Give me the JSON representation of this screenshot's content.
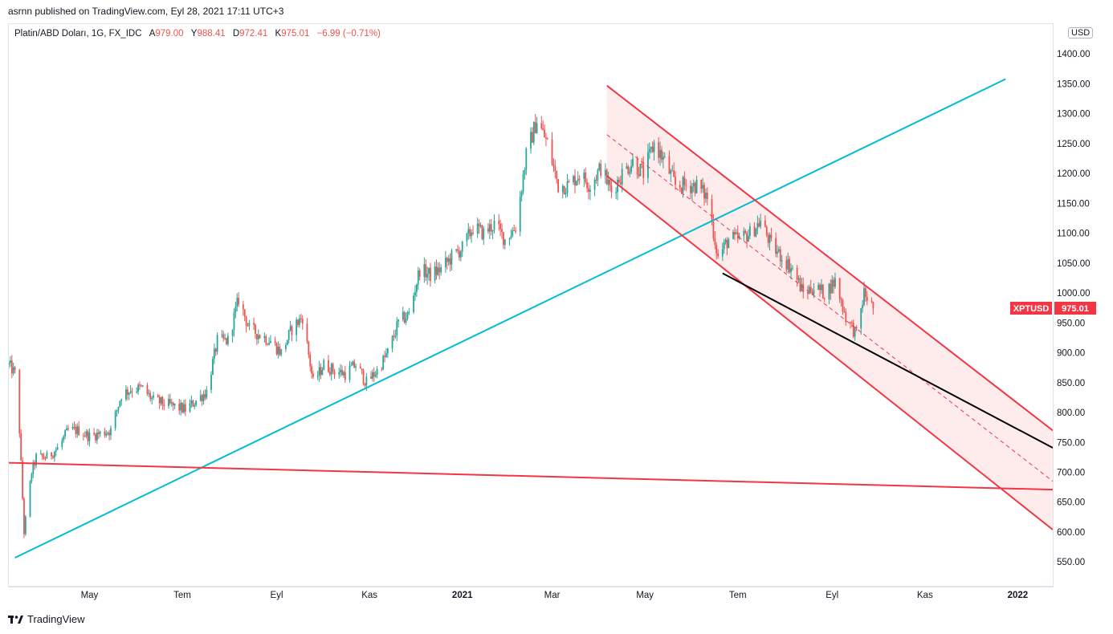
{
  "header": {
    "published": "asrnn published on TradingView.com, Eyl 28, 2021 17:11 UTC+3"
  },
  "legend": {
    "symbol": "Platin/ABD Doları, 1G, FX_IDC",
    "open_label": "A",
    "open": "979.00",
    "high_label": "Y",
    "high": "988.41",
    "low_label": "D",
    "low": "972.41",
    "close_label": "K",
    "close": "975.01",
    "change": "−6.99 (−0.71%)"
  },
  "currency": "USD",
  "last_price_tag": {
    "symbol": "XPTUSD",
    "price": "975.01"
  },
  "footer": {
    "brand": "TradingView"
  },
  "colors": {
    "up": "#26a69a",
    "down": "#ef5350",
    "channel": "#f23645",
    "trendline": "#00bcd4",
    "support": "#000000",
    "channel_fill": "#fde4e4"
  },
  "chart_data": {
    "type": "candlestick",
    "symbol": "XPTUSD",
    "x_start": "2020-03-09",
    "x_end": "2022-01-24",
    "ylim": [
      510,
      1450
    ],
    "y_ticks": [
      550,
      600,
      650,
      700,
      750,
      800,
      850,
      900,
      950,
      1000,
      1050,
      1100,
      1150,
      1200,
      1250,
      1300,
      1350,
      1400
    ],
    "x_ticks": [
      {
        "label": "May",
        "date": "2020-05-01",
        "bold": false
      },
      {
        "label": "Tem",
        "date": "2020-07-01",
        "bold": false
      },
      {
        "label": "Eyl",
        "date": "2020-09-01",
        "bold": false
      },
      {
        "label": "Kas",
        "date": "2020-11-01",
        "bold": false
      },
      {
        "label": "2021",
        "date": "2021-01-01",
        "bold": true
      },
      {
        "label": "Mar",
        "date": "2021-03-01",
        "bold": false
      },
      {
        "label": "May",
        "date": "2021-05-01",
        "bold": false
      },
      {
        "label": "Tem",
        "date": "2021-07-01",
        "bold": false
      },
      {
        "label": "Eyl",
        "date": "2021-09-01",
        "bold": false
      },
      {
        "label": "Kas",
        "date": "2021-11-01",
        "bold": false
      },
      {
        "label": "2022",
        "date": "2022-01-01",
        "bold": true
      }
    ],
    "price_path": [
      [
        "2020-03-09",
        880
      ],
      [
        "2020-03-13",
        865
      ],
      [
        "2020-03-16",
        770
      ],
      [
        "2020-03-19",
        600
      ],
      [
        "2020-03-24",
        700
      ],
      [
        "2020-03-27",
        725
      ],
      [
        "2020-04-03",
        725
      ],
      [
        "2020-04-10",
        740
      ],
      [
        "2020-04-17",
        770
      ],
      [
        "2020-04-24",
        770
      ],
      [
        "2020-05-01",
        760
      ],
      [
        "2020-05-08",
        765
      ],
      [
        "2020-05-15",
        770
      ],
      [
        "2020-05-22",
        830
      ],
      [
        "2020-05-29",
        840
      ],
      [
        "2020-06-05",
        840
      ],
      [
        "2020-06-12",
        820
      ],
      [
        "2020-06-19",
        815
      ],
      [
        "2020-06-26",
        810
      ],
      [
        "2020-07-03",
        805
      ],
      [
        "2020-07-10",
        820
      ],
      [
        "2020-07-17",
        835
      ],
      [
        "2020-07-24",
        920
      ],
      [
        "2020-07-31",
        920
      ],
      [
        "2020-08-07",
        990
      ],
      [
        "2020-08-14",
        940
      ],
      [
        "2020-08-21",
        930
      ],
      [
        "2020-08-28",
        920
      ],
      [
        "2020-09-04",
        900
      ],
      [
        "2020-09-11",
        940
      ],
      [
        "2020-09-18",
        960
      ],
      [
        "2020-09-25",
        850
      ],
      [
        "2020-10-02",
        880
      ],
      [
        "2020-10-09",
        870
      ],
      [
        "2020-10-16",
        865
      ],
      [
        "2020-10-23",
        880
      ],
      [
        "2020-10-30",
        850
      ],
      [
        "2020-11-06",
        870
      ],
      [
        "2020-11-13",
        900
      ],
      [
        "2020-11-20",
        950
      ],
      [
        "2020-11-27",
        965
      ],
      [
        "2020-12-04",
        1040
      ],
      [
        "2020-12-11",
        1030
      ],
      [
        "2020-12-18",
        1040
      ],
      [
        "2020-12-25",
        1060
      ],
      [
        "2021-01-01",
        1075
      ],
      [
        "2021-01-08",
        1110
      ],
      [
        "2021-01-15",
        1100
      ],
      [
        "2021-01-22",
        1115
      ],
      [
        "2021-01-29",
        1090
      ],
      [
        "2021-02-05",
        1110
      ],
      [
        "2021-02-12",
        1230
      ],
      [
        "2021-02-19",
        1290
      ],
      [
        "2021-02-26",
        1250
      ],
      [
        "2021-03-05",
        1180
      ],
      [
        "2021-03-12",
        1180
      ],
      [
        "2021-03-19",
        1200
      ],
      [
        "2021-03-26",
        1180
      ],
      [
        "2021-04-02",
        1210
      ],
      [
        "2021-04-09",
        1170
      ],
      [
        "2021-04-16",
        1200
      ],
      [
        "2021-04-23",
        1220
      ],
      [
        "2021-04-30",
        1200
      ],
      [
        "2021-05-07",
        1250
      ],
      [
        "2021-05-14",
        1220
      ],
      [
        "2021-05-21",
        1180
      ],
      [
        "2021-05-28",
        1180
      ],
      [
        "2021-06-04",
        1180
      ],
      [
        "2021-06-11",
        1160
      ],
      [
        "2021-06-18",
        1060
      ],
      [
        "2021-06-25",
        1090
      ],
      [
        "2021-07-02",
        1090
      ],
      [
        "2021-07-09",
        1100
      ],
      [
        "2021-07-16",
        1120
      ],
      [
        "2021-07-23",
        1080
      ],
      [
        "2021-07-30",
        1060
      ],
      [
        "2021-08-06",
        1040
      ],
      [
        "2021-08-13",
        1000
      ],
      [
        "2021-08-20",
        1010
      ],
      [
        "2021-08-27",
        1000
      ],
      [
        "2021-09-03",
        1020
      ],
      [
        "2021-09-10",
        960
      ],
      [
        "2021-09-17",
        930
      ],
      [
        "2021-09-22",
        1000
      ],
      [
        "2021-09-28",
        975.01
      ]
    ],
    "trendlines": [
      {
        "name": "ascending-support",
        "color": "#00bcd4",
        "points": [
          [
            "2020-03-13",
            557
          ],
          [
            "2021-12-24",
            1358
          ]
        ]
      },
      {
        "name": "horizontal-support",
        "color": "#f23645",
        "points": [
          [
            "2020-03-09",
            716
          ],
          [
            "2022-01-24",
            671
          ]
        ]
      },
      {
        "name": "channel-upper",
        "color": "#f23645",
        "points": [
          [
            "2021-04-06",
            1347
          ],
          [
            "2022-01-24",
            770
          ]
        ]
      },
      {
        "name": "channel-lower",
        "color": "#f23645",
        "points": [
          [
            "2021-04-06",
            1196
          ],
          [
            "2022-01-24",
            604
          ]
        ]
      },
      {
        "name": "channel-mid",
        "color": "#f23645",
        "dashed": true,
        "points": [
          [
            "2021-04-06",
            1265
          ],
          [
            "2022-01-24",
            685
          ]
        ]
      },
      {
        "name": "black-support",
        "color": "#000000",
        "points": [
          [
            "2021-06-21",
            1033
          ],
          [
            "2022-01-24",
            741
          ]
        ]
      }
    ]
  }
}
